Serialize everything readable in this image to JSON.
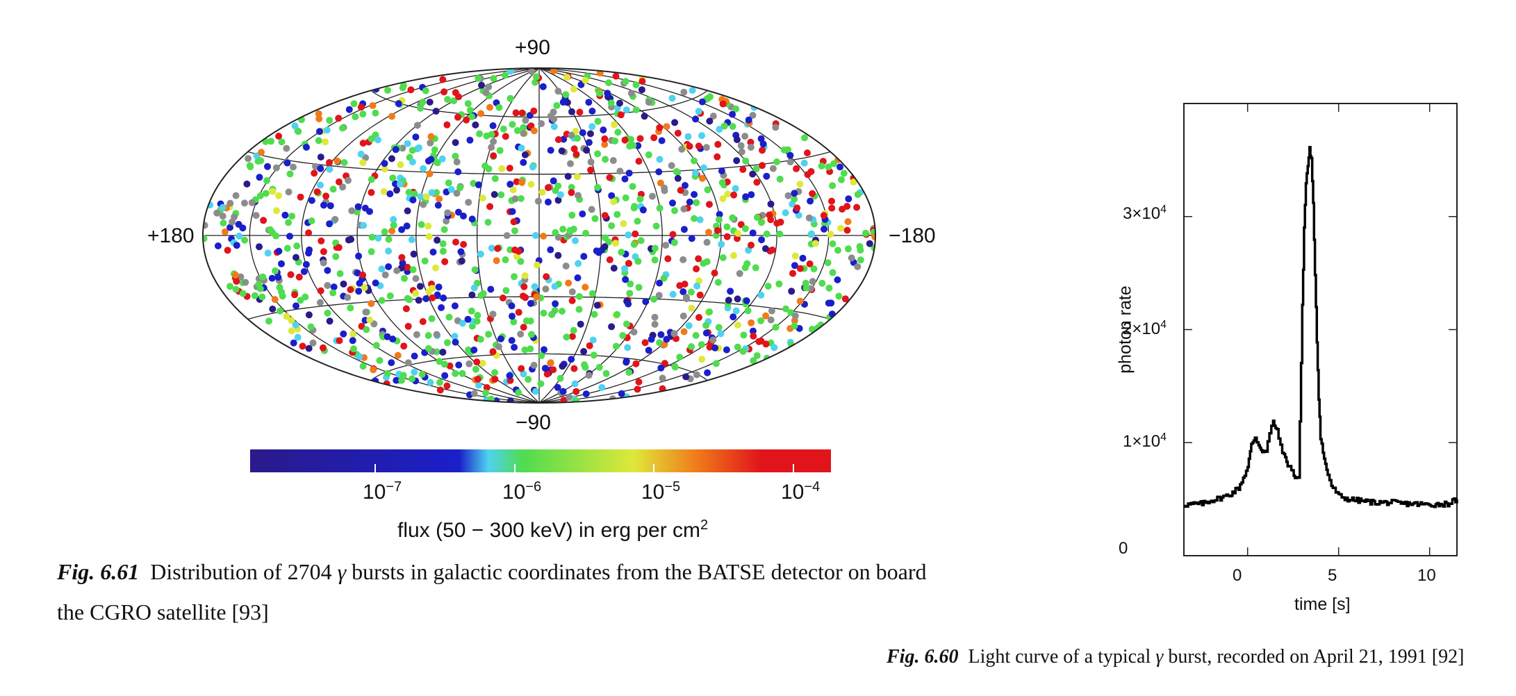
{
  "fig61": {
    "label": "Fig. 6.61",
    "caption_pre": "Distribution of 2704",
    "symbol": "γ",
    "caption_post_line1": "bursts in galactic coordinates from the BATSE  detector on board",
    "caption_line2": "the CGRO satellite [93]"
  },
  "fig60": {
    "label": "Fig. 6.60",
    "caption_pre": "Light curve of a typical",
    "symbol": "γ",
    "caption_post": "burst, recorded on April 21, 1991 [92]"
  },
  "colors": {
    "grid": "#222222",
    "colormap": [
      "#2a1a8a",
      "#1a1fc9",
      "#4fd2f0",
      "#4fdc4f",
      "#dfe83a",
      "#f07a1a",
      "#e0141a"
    ],
    "null_flux": "#8c8c8c"
  },
  "chart_data": [
    {
      "type": "scatter",
      "projection": "Aitoff/Hammer galactic coordinates",
      "latitude_labels": [
        "+90",
        "−90"
      ],
      "longitude_labels": [
        "+180",
        "−180"
      ],
      "n_points": 2704,
      "colorbar": {
        "scale": "log",
        "range": [
          1e-08,
          0.0003
        ],
        "tick_labels": [
          "10",
          "10",
          "10",
          "10"
        ],
        "tick_exponents": [
          "−7",
          "−6",
          "−5",
          "−4"
        ],
        "label": "flux (50 − 300 keV) in erg per cm",
        "label_superscript": "2"
      }
    },
    {
      "type": "line",
      "xlabel": "time [s]",
      "ylabel": "photon rate",
      "xlim": [
        -3.5,
        11.5
      ],
      "ylim": [
        0,
        40000
      ],
      "xticks": [
        "0",
        "5",
        "10"
      ],
      "yticks": [
        "0",
        "1×10",
        "2×10",
        "3×10"
      ],
      "ytick_superscript": "4",
      "series": [
        {
          "x": [
            -3.5,
            -2.5,
            -2.0,
            -1.5,
            -1.0,
            -0.5,
            0.0,
            0.2,
            0.4,
            0.6,
            0.8,
            1.0,
            1.2,
            1.4,
            1.6,
            1.8,
            2.0,
            2.2,
            2.4,
            2.6,
            2.8,
            3.0,
            3.1,
            3.2,
            3.3,
            3.4,
            3.5,
            3.6,
            3.7,
            3.8,
            3.9,
            4.0,
            4.2,
            4.4,
            4.6,
            5.0,
            5.5,
            6.0,
            6.5,
            7.0,
            7.5,
            8.0,
            8.5,
            9.0,
            9.5,
            10.0,
            10.5,
            11.0,
            11.5
          ],
          "y": [
            4500,
            4600,
            4900,
            5100,
            5400,
            6000,
            7800,
            9800,
            10500,
            9800,
            9300,
            9200,
            10800,
            11900,
            11000,
            9800,
            8800,
            8100,
            7600,
            7000,
            6900,
            22000,
            29000,
            33000,
            34500,
            36000,
            35000,
            31000,
            25000,
            19000,
            14000,
            10500,
            8500,
            7200,
            6200,
            5300,
            5000,
            4900,
            4800,
            4700,
            4700,
            4700,
            4600,
            4600,
            4550,
            4500,
            4550,
            4600,
            5000
          ]
        }
      ]
    }
  ]
}
